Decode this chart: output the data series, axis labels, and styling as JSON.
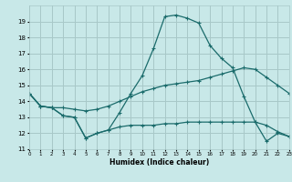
{
  "xlabel": "Humidex (Indice chaleur)",
  "xlim": [
    0,
    23
  ],
  "ylim": [
    11,
    20
  ],
  "yticks": [
    11,
    12,
    13,
    14,
    15,
    16,
    17,
    18,
    19
  ],
  "xtick_labels": [
    "0",
    "1",
    "2",
    "3",
    "4",
    "5",
    "6",
    "7",
    "8",
    "9",
    "10",
    "11",
    "12",
    "13",
    "14",
    "15",
    "16",
    "17",
    "18",
    "19",
    "20",
    "21",
    "22",
    "23"
  ],
  "bg_color": "#c8e8e8",
  "grid_color": "#a8c8c8",
  "line_color": "#1a6b6b",
  "line1": [
    14.5,
    13.7,
    13.6,
    13.1,
    13.0,
    11.7,
    12.0,
    12.2,
    13.3,
    14.5,
    15.6,
    17.3,
    19.3,
    19.4,
    19.2,
    18.9,
    17.5,
    16.7,
    16.1,
    14.3,
    12.7,
    11.5,
    12.0,
    11.8
  ],
  "line2": [
    14.5,
    13.7,
    13.6,
    13.6,
    13.5,
    13.4,
    13.5,
    13.7,
    14.0,
    14.3,
    14.6,
    14.8,
    15.0,
    15.1,
    15.2,
    15.3,
    15.5,
    15.7,
    15.9,
    16.1,
    16.0,
    15.5,
    15.0,
    14.5
  ],
  "line3": [
    14.5,
    13.7,
    13.6,
    13.1,
    13.0,
    11.7,
    12.0,
    12.2,
    12.4,
    12.5,
    12.5,
    12.5,
    12.6,
    12.6,
    12.7,
    12.7,
    12.7,
    12.7,
    12.7,
    12.7,
    12.7,
    12.5,
    12.1,
    11.8
  ]
}
